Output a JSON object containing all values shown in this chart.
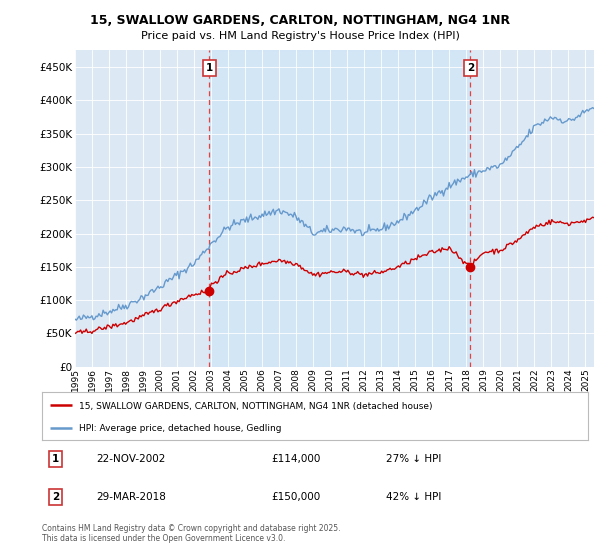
{
  "title_line1": "15, SWALLOW GARDENS, CARLTON, NOTTINGHAM, NG4 1NR",
  "title_line2": "Price paid vs. HM Land Registry's House Price Index (HPI)",
  "legend_red": "15, SWALLOW GARDENS, CARLTON, NOTTINGHAM, NG4 1NR (detached house)",
  "legend_blue": "HPI: Average price, detached house, Gedling",
  "annotation1_label": "1",
  "annotation1_date": "22-NOV-2002",
  "annotation1_price": "£114,000",
  "annotation1_hpi": "27% ↓ HPI",
  "annotation2_label": "2",
  "annotation2_date": "29-MAR-2018",
  "annotation2_price": "£150,000",
  "annotation2_hpi": "42% ↓ HPI",
  "footer": "Contains HM Land Registry data © Crown copyright and database right 2025.\nThis data is licensed under the Open Government Licence v3.0.",
  "red_color": "#cc0000",
  "blue_color": "#6699cc",
  "vline_color": "#dd4444",
  "bg_color": "#dce9f5",
  "bg_between_color": "#cce0f5",
  "ylim": [
    0,
    475000
  ],
  "yticks": [
    0,
    50000,
    100000,
    150000,
    200000,
    250000,
    300000,
    350000,
    400000,
    450000
  ],
  "sale1_x": 2002.9,
  "sale1_y": 114000,
  "sale2_x": 2018.23,
  "sale2_y": 150000,
  "xmin": 1995,
  "xmax": 2025.5
}
